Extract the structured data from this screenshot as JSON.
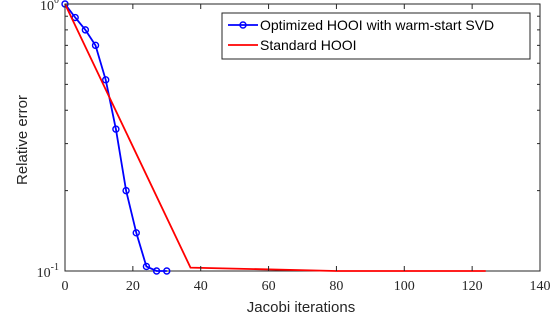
{
  "chart_data": {
    "type": "line",
    "xlabel": "Jacobi iterations",
    "ylabel": "Relative error",
    "xlim": [
      0,
      140
    ],
    "ylim": [
      0.1,
      1
    ],
    "yscale": "log",
    "grid": false,
    "legend_position": "top-right",
    "x_ticks": [
      "0",
      "20",
      "40",
      "60",
      "80",
      "100",
      "120",
      "140"
    ],
    "y_ticks": [
      {
        "value": 1,
        "base": "10",
        "exponent": "0"
      },
      {
        "value": 0.1,
        "base": "10",
        "exponent": "-1"
      }
    ],
    "series": [
      {
        "name": "Optimized HOOI with warm-start SVD",
        "color": "#0000ff",
        "marker": "circle",
        "x": [
          0,
          3,
          6,
          9,
          12,
          15,
          18,
          21,
          24,
          27,
          30
        ],
        "y": [
          1.0,
          0.89,
          0.8,
          0.7,
          0.52,
          0.34,
          0.2,
          0.139,
          0.104,
          0.1,
          0.1
        ]
      },
      {
        "name": "Standard HOOI",
        "color": "#ff0000",
        "marker": "none",
        "x": [
          0,
          37,
          80,
          124
        ],
        "y": [
          1.0,
          0.103,
          0.1,
          0.1
        ]
      }
    ]
  }
}
